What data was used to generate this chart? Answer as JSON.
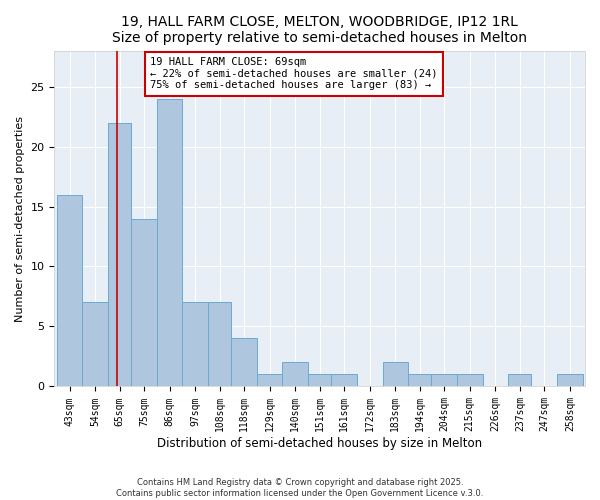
{
  "title": "19, HALL FARM CLOSE, MELTON, WOODBRIDGE, IP12 1RL",
  "subtitle": "Size of property relative to semi-detached houses in Melton",
  "xlabel": "Distribution of semi-detached houses by size in Melton",
  "ylabel": "Number of semi-detached properties",
  "bin_labels": [
    "43sqm",
    "54sqm",
    "65sqm",
    "75sqm",
    "86sqm",
    "97sqm",
    "108sqm",
    "118sqm",
    "129sqm",
    "140sqm",
    "151sqm",
    "161sqm",
    "172sqm",
    "183sqm",
    "194sqm",
    "204sqm",
    "215sqm",
    "226sqm",
    "237sqm",
    "247sqm",
    "258sqm"
  ],
  "bin_edges": [
    43,
    54,
    65,
    75,
    86,
    97,
    108,
    118,
    129,
    140,
    151,
    161,
    172,
    183,
    194,
    204,
    215,
    226,
    237,
    247,
    258,
    269
  ],
  "values": [
    16,
    7,
    22,
    14,
    24,
    7,
    7,
    4,
    1,
    2,
    1,
    1,
    0,
    2,
    1,
    1,
    1,
    0,
    1,
    0,
    1
  ],
  "bar_color": "#aec6de",
  "bar_edgecolor": "#6aaad4",
  "vline_x": 69,
  "vline_color": "#cc0000",
  "annotation_line1": "19 HALL FARM CLOSE: 69sqm",
  "annotation_line2": "← 22% of semi-detached houses are smaller (24)",
  "annotation_line3": "75% of semi-detached houses are larger (83) →",
  "annotation_box_color": "#ffffff",
  "annotation_box_edgecolor": "#cc0000",
  "ylim": [
    0,
    28
  ],
  "yticks": [
    0,
    5,
    10,
    15,
    20,
    25
  ],
  "background_color": "#e8eef5",
  "grid_color": "#ffffff",
  "footer_line1": "Contains HM Land Registry data © Crown copyright and database right 2025.",
  "footer_line2": "Contains public sector information licensed under the Open Government Licence v.3.0.",
  "title_fontsize": 10,
  "ylabel_fontsize": 8,
  "xlabel_fontsize": 8.5,
  "tick_fontsize": 7,
  "annot_fontsize": 7.5,
  "footer_fontsize": 6
}
